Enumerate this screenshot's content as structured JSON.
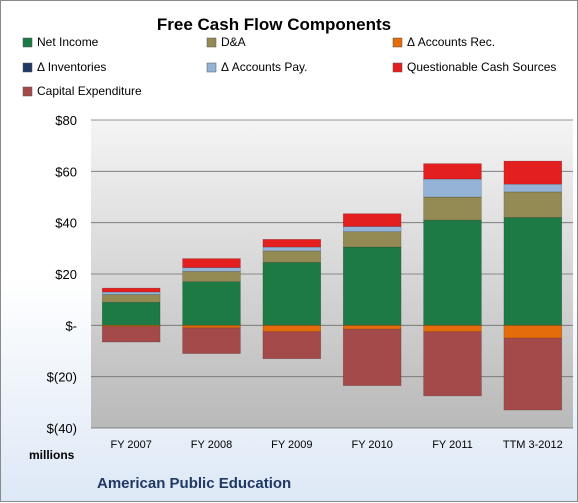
{
  "chart_data": {
    "type": "bar",
    "stacked": true,
    "title": "Free Cash Flow Components",
    "ylabel": "millions",
    "footer": "American Public Education",
    "categories": [
      "FY 2007",
      "FY 2008",
      "FY 2009",
      "FY 2010",
      "FY 2011",
      "TTM 3-2012"
    ],
    "ylim": [
      -40,
      80
    ],
    "yticks": [
      80,
      60,
      40,
      20,
      0,
      -20,
      -40
    ],
    "ytick_labels": [
      "$80",
      "$60",
      "$40",
      "$20",
      "$-",
      "$(20)",
      "$(40)"
    ],
    "grid": true,
    "legend_position": "top",
    "series": [
      {
        "name": "Net Income",
        "color": "#1e7a45",
        "values": [
          9,
          17,
          24.5,
          30.5,
          41,
          42
        ]
      },
      {
        "name": "D&A",
        "color": "#948a54",
        "values": [
          3,
          4,
          4.5,
          6,
          9,
          10
        ]
      },
      {
        "name": "Δ Accounts Rec.",
        "color": "#e46c0a",
        "values": [
          -0.5,
          -1,
          -2.5,
          -1.5,
          -2.5,
          -5
        ]
      },
      {
        "name": "Δ Inventories",
        "color": "#1f3864",
        "values": [
          0,
          0,
          0,
          0,
          0,
          0
        ]
      },
      {
        "name": "Δ Accounts Pay.",
        "color": "#95b3d7",
        "values": [
          1,
          1.5,
          1.5,
          2,
          7,
          3
        ]
      },
      {
        "name": "Questionable Cash Sources",
        "color": "#e41f1f",
        "values": [
          1.5,
          3.5,
          3,
          5,
          6,
          9
        ]
      },
      {
        "name": "Capital Expenditure",
        "color": "#a54a4a",
        "values": [
          -6,
          -10,
          -10.5,
          -22,
          -25,
          -28
        ]
      }
    ]
  }
}
